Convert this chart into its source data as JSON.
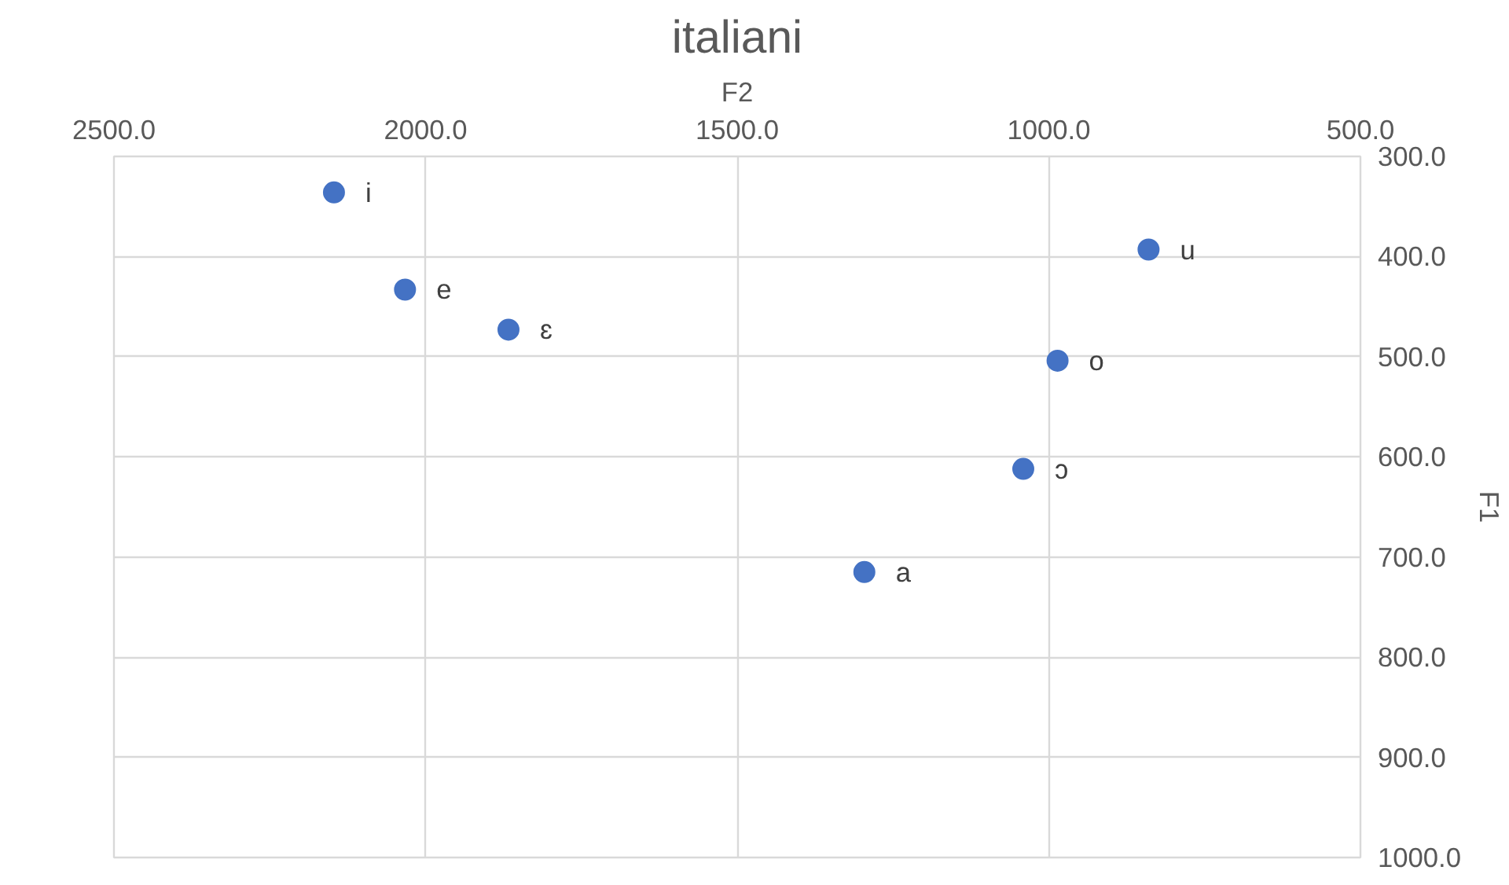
{
  "chart_data": {
    "type": "scatter",
    "title": "italiani",
    "xlabel": "F2",
    "ylabel": "F1",
    "x": [
      2147,
      2033,
      1867,
      1296,
      1041,
      986,
      840
    ],
    "series": [
      {
        "color": "#4472c4",
        "values": [
          336,
          433,
          473,
          715,
          612,
          504,
          393
        ]
      }
    ],
    "marker": "circle",
    "grid": true,
    "xlim": [
      2500,
      500
    ],
    "ylim": [
      1000,
      300
    ],
    "xticks": [
      {
        "value": 2500,
        "label": "2500.0"
      },
      {
        "value": 2000,
        "label": "2000.0"
      },
      {
        "value": 1500,
        "label": "1500.0"
      },
      {
        "value": 1000,
        "label": "1000.0"
      },
      {
        "value": 500,
        "label": "500.0"
      }
    ],
    "yticks": [
      {
        "value": 300,
        "label": "300.0"
      },
      {
        "value": 400,
        "label": "400.0"
      },
      {
        "value": 500,
        "label": "500.0"
      },
      {
        "value": 600,
        "label": "600.0"
      },
      {
        "value": 700,
        "label": "700.0"
      },
      {
        "value": 800,
        "label": "800.0"
      },
      {
        "value": 900,
        "label": "900.0"
      },
      {
        "value": 1000,
        "label": "1000.0"
      }
    ],
    "annotations": [
      {
        "text": "i",
        "x": 2147,
        "y": 336
      },
      {
        "text": "e",
        "x": 2033,
        "y": 433
      },
      {
        "text": "ɛ",
        "x": 1867,
        "y": 473
      },
      {
        "text": "a",
        "x": 1296,
        "y": 715
      },
      {
        "text": "ɔ",
        "x": 1041,
        "y": 612
      },
      {
        "text": "o",
        "x": 986,
        "y": 504
      },
      {
        "text": "u",
        "x": 840,
        "y": 393
      }
    ]
  }
}
